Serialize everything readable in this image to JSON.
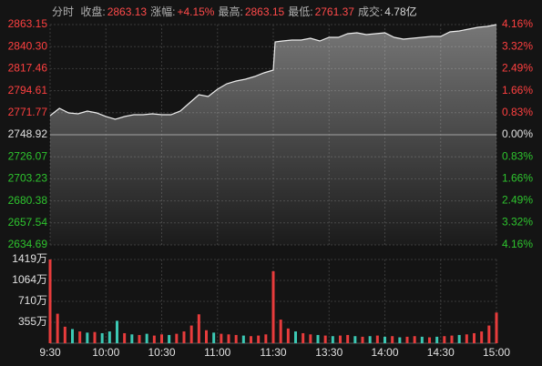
{
  "header": {
    "mode": "分时",
    "stats": [
      {
        "label": "收盘:",
        "value": "2863.13",
        "color": "#ff4a4a"
      },
      {
        "label": "涨幅:",
        "value": "+4.15%",
        "color": "#ff4a4a"
      },
      {
        "label": "最高:",
        "value": "2863.15",
        "color": "#ff4a4a"
      },
      {
        "label": "最低:",
        "value": "2761.37",
        "color": "#ff4a4a"
      },
      {
        "label": "成交:",
        "value": "4.78亿",
        "color": "#d8d8d8"
      }
    ]
  },
  "chart_data": [
    {
      "type": "line",
      "color": "#ececec",
      "up_color": "#ff4040",
      "down_color": "#2ec42e",
      "flat_color": "#e0e0e0",
      "grid": true,
      "xlim": [
        0,
        240
      ],
      "x": [
        0,
        5,
        10,
        15,
        20,
        25,
        30,
        35,
        40,
        45,
        50,
        55,
        60,
        65,
        70,
        75,
        80,
        85,
        90,
        95,
        100,
        105,
        110,
        115,
        120,
        121,
        125,
        130,
        135,
        140,
        145,
        150,
        155,
        160,
        165,
        170,
        175,
        180,
        185,
        190,
        195,
        200,
        205,
        210,
        215,
        220,
        225,
        230,
        235,
        240
      ],
      "values": [
        2768.75,
        2776.3,
        2771.58,
        2770.64,
        2773.47,
        2771.58,
        2767.81,
        2764.98,
        2767.81,
        2769.69,
        2769.69,
        2770.64,
        2769.69,
        2769.69,
        2773.47,
        2781.97,
        2790.46,
        2788.57,
        2796.13,
        2801.79,
        2804.62,
        2806.51,
        2809.34,
        2813.12,
        2815.95,
        2845.21,
        2846.16,
        2847.1,
        2847.1,
        2848.99,
        2846.16,
        2849.93,
        2849.93,
        2853.71,
        2854.65,
        2852.77,
        2853.71,
        2854.65,
        2849.93,
        2848.05,
        2848.99,
        2849.93,
        2850.88,
        2850.88,
        2855.6,
        2856.54,
        2858.43,
        2860.32,
        2861.26,
        2863.13
      ],
      "ylim": [
        2634.69,
        2863.15
      ],
      "yticks": [
        2863.15,
        {
          "value": 2840.3,
          "label": "2840.30"
        },
        2817.46,
        2794.61,
        2771.77,
        2748.92,
        2726.07,
        2703.23,
        2680.38,
        2657.54,
        2634.69
      ],
      "y2lim": [
        -4.16,
        4.16
      ],
      "y2ticks": [
        {
          "value": 4.16,
          "label": "4.16%"
        },
        {
          "value": 3.32,
          "label": "3.32%"
        },
        {
          "value": 2.49,
          "label": "2.49%"
        },
        {
          "value": 1.66,
          "label": "1.66%"
        },
        {
          "value": 0.83,
          "label": "0.83%"
        },
        {
          "value": 0,
          "label": "0.00%"
        },
        {
          "value": -0.83,
          "label": "0.83%"
        },
        {
          "value": -1.66,
          "label": "1.66%"
        },
        {
          "value": -2.49,
          "label": "2.49%"
        },
        {
          "value": -3.32,
          "label": "3.32%"
        },
        {
          "value": -4.16,
          "label": "4.16%"
        }
      ]
    },
    {
      "type": "bar",
      "grid": true,
      "xlim": [
        0,
        240
      ],
      "x": [
        0,
        4,
        8,
        12,
        16,
        20,
        24,
        28,
        32,
        36,
        40,
        44,
        48,
        52,
        56,
        60,
        64,
        68,
        72,
        76,
        80,
        84,
        88,
        92,
        96,
        100,
        104,
        108,
        112,
        116,
        120,
        124,
        128,
        132,
        136,
        140,
        144,
        148,
        152,
        156,
        160,
        164,
        168,
        172,
        176,
        180,
        184,
        188,
        192,
        196,
        200,
        204,
        208,
        212,
        216,
        220,
        224,
        228,
        232,
        236,
        240
      ],
      "values": [
        1419,
        500,
        280,
        240,
        200,
        180,
        190,
        170,
        200,
        380,
        170,
        150,
        140,
        160,
        130,
        150,
        140,
        160,
        200,
        300,
        490,
        220,
        180,
        160,
        150,
        140,
        130,
        120,
        130,
        150,
        1220,
        400,
        250,
        200,
        170,
        150,
        140,
        130,
        120,
        130,
        140,
        120,
        110,
        120,
        130,
        110,
        120,
        100,
        110,
        120,
        110,
        100,
        110,
        120,
        130,
        140,
        150,
        170,
        200,
        300,
        520
      ],
      "colors": [
        "#e83c3c",
        "#e83c3c",
        "#e83c3c",
        "#3cc8b4",
        "#e83c3c",
        "#3cc8b4",
        "#e83c3c",
        "#3cc8b4",
        "#3cc8b4",
        "#3cc8b4",
        "#e83c3c",
        "#3cc8b4",
        "#e83c3c",
        "#3cc8b4",
        "#e83c3c",
        "#e83c3c",
        "#3cc8b4",
        "#e83c3c",
        "#e83c3c",
        "#e83c3c",
        "#e83c3c",
        "#e83c3c",
        "#3cc8b4",
        "#e83c3c",
        "#e83c3c",
        "#e83c3c",
        "#3cc8b4",
        "#e83c3c",
        "#e83c3c",
        "#e83c3c",
        "#e83c3c",
        "#e83c3c",
        "#e83c3c",
        "#3cc8b4",
        "#e83c3c",
        "#e83c3c",
        "#3cc8b4",
        "#e83c3c",
        "#3cc8b4",
        "#e83c3c",
        "#e83c3c",
        "#3cc8b4",
        "#e83c3c",
        "#3cc8b4",
        "#e83c3c",
        "#3cc8b4",
        "#e83c3c",
        "#3cc8b4",
        "#e83c3c",
        "#e83c3c",
        "#3cc8b4",
        "#e83c3c",
        "#3cc8b4",
        "#e83c3c",
        "#e83c3c",
        "#3cc8b4",
        "#e83c3c",
        "#e83c3c",
        "#e83c3c",
        "#e83c3c",
        "#e83c3c"
      ],
      "ylim": [
        0,
        1419
      ],
      "yticks": [
        {
          "value": 1419,
          "label": "1419万"
        },
        {
          "value": 1064,
          "label": "1064万"
        },
        {
          "value": 710,
          "label": "710万"
        },
        {
          "value": 355,
          "label": "355万"
        }
      ],
      "xticks": [
        {
          "value": 0,
          "label": "9:30"
        },
        {
          "value": 30,
          "label": "10:00"
        },
        {
          "value": 60,
          "label": "10:30"
        },
        {
          "value": 90,
          "label": "11:00"
        },
        {
          "value": 120,
          "label": "11:30"
        },
        {
          "value": 150,
          "label": "13:30"
        },
        {
          "value": 180,
          "label": "14:00"
        },
        {
          "value": 210,
          "label": "14:30"
        },
        {
          "value": 240,
          "label": "15:00"
        }
      ]
    }
  ]
}
